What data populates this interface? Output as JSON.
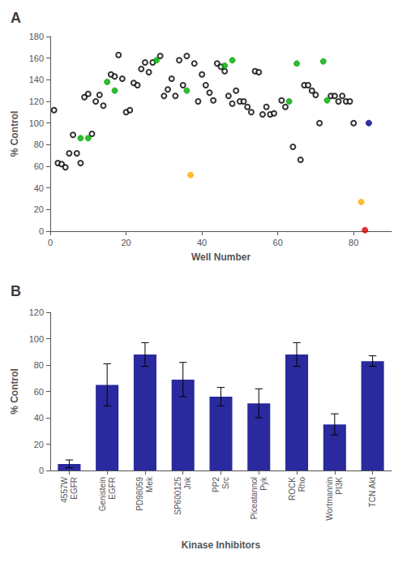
{
  "chart_data": [
    {
      "type": "scatter",
      "title": "A",
      "xlabel": "Well Number",
      "ylabel": "% Control",
      "series": [
        {
          "x": [
            1,
            2,
            3,
            4,
            5,
            6,
            7,
            8,
            9,
            10,
            11,
            12,
            13,
            14,
            16,
            17,
            18,
            19,
            20,
            21,
            22,
            23,
            24,
            25,
            26,
            27,
            29,
            30,
            31,
            32,
            33,
            34,
            35,
            36,
            38,
            39,
            40,
            41,
            42,
            43,
            44,
            45,
            46,
            47,
            48,
            49,
            50,
            51,
            52,
            53,
            54,
            55,
            56,
            57,
            58,
            59,
            61,
            62,
            64,
            66,
            67,
            68,
            69,
            70,
            71,
            74,
            75,
            76,
            77,
            78,
            79,
            80
          ],
          "values": [
            112,
            63,
            62,
            59,
            72,
            89,
            72,
            63,
            124,
            127,
            90,
            120,
            126,
            116,
            145,
            143,
            163,
            141,
            110,
            112,
            137,
            135,
            150,
            156,
            147,
            156,
            162,
            125,
            131,
            141,
            125,
            158,
            135,
            162,
            155,
            120,
            145,
            135,
            128,
            121,
            155,
            152,
            148,
            125,
            118,
            130,
            120,
            120,
            115,
            110,
            148,
            147,
            108,
            115,
            108,
            109,
            121,
            115,
            78,
            66,
            135,
            135,
            130,
            126,
            100,
            125,
            125,
            120,
            125,
            120,
            120,
            100
          ],
          "color": "#000000",
          "marker": "open_circle"
        },
        {
          "x": [
            8,
            10,
            15,
            17,
            28,
            36,
            46,
            48,
            63,
            65,
            72,
            73
          ],
          "values": [
            86,
            86,
            138,
            130,
            158,
            130,
            153,
            158,
            120,
            155,
            157,
            121
          ],
          "color": "#00aa00",
          "marker": "circle"
        },
        {
          "x": [
            37,
            82
          ],
          "values": [
            52,
            27
          ],
          "color": "#ffaa00",
          "marker": "circle"
        },
        {
          "x": [
            83
          ],
          "values": [
            1
          ],
          "color": "#dd0000",
          "marker": "circle"
        },
        {
          "x": [
            84
          ],
          "values": [
            100
          ],
          "color": "#00008b",
          "marker": "circle"
        }
      ],
      "xlim": [
        0,
        90
      ],
      "ylim": [
        0,
        180
      ],
      "xticks": [
        0,
        20,
        40,
        60,
        80
      ],
      "yticks": [
        0,
        20,
        40,
        60,
        80,
        100,
        120,
        140,
        160,
        180
      ],
      "grid": false
    },
    {
      "type": "bar",
      "title": "B",
      "xlabel": "Kinase Inhibitors",
      "ylabel": "% Control",
      "categories": [
        "4557W\nEGFR",
        "Genistein\nEGFR",
        "PD98059\nMek",
        "SP600125\nJnk",
        "PP2\nSrc",
        "Piceatannol\nPyk",
        "ROCK\nRho",
        "Wortmannin\nPI3K",
        "TCN Akt"
      ],
      "values": [
        5,
        65,
        88,
        69,
        56,
        51,
        88,
        35,
        83
      ],
      "errors": [
        3,
        16,
        9,
        13,
        7,
        11,
        9,
        8,
        4
      ],
      "color": "#2a2a9e",
      "ylim": [
        0,
        120
      ],
      "yticks": [
        0,
        20,
        40,
        60,
        80,
        100,
        120
      ],
      "grid": false
    }
  ]
}
